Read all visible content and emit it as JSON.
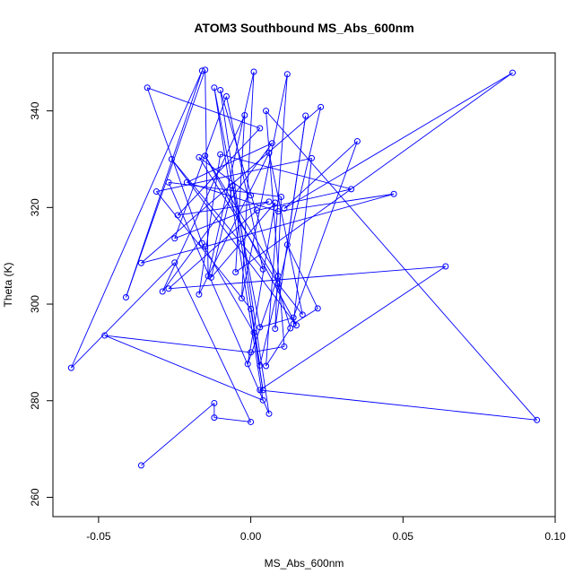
{
  "chart_data": {
    "type": "line",
    "title": "ATOM3 Southbound MS_Abs_600nm",
    "xlabel": "MS_Abs_600nm",
    "ylabel": "Theta (K)",
    "xlim": [
      -0.065,
      0.1
    ],
    "ylim": [
      256,
      352
    ],
    "xticks": [
      -0.05,
      0.0,
      0.05,
      0.1
    ],
    "xtick_labels": [
      "-0.05",
      "0.00",
      "0.05",
      "0.10"
    ],
    "yticks": [
      260,
      280,
      300,
      320,
      340
    ],
    "ytick_labels": [
      "260",
      "280",
      "300",
      "320",
      "340"
    ],
    "grid": false,
    "legend": "none",
    "markers": "open-circle",
    "series_color": "#0000ff",
    "points": [
      {
        "x": -0.036,
        "y": 266.6
      },
      {
        "x": -0.012,
        "y": 279.5
      },
      {
        "x": -0.012,
        "y": 276.5
      },
      {
        "x": 0.0,
        "y": 275.6
      },
      {
        "x": -0.025,
        "y": 308.6
      },
      {
        "x": -0.059,
        "y": 286.8
      },
      {
        "x": -0.016,
        "y": 348.3
      },
      {
        "x": -0.041,
        "y": 301.4
      },
      {
        "x": -0.015,
        "y": 348.5
      },
      {
        "x": -0.014,
        "y": 305.8
      },
      {
        "x": 0.001,
        "y": 348.1
      },
      {
        "x": -0.003,
        "y": 301.2
      },
      {
        "x": 0.012,
        "y": 347.6
      },
      {
        "x": 0.005,
        "y": 287.2
      },
      {
        "x": 0.013,
        "y": 295.0
      },
      {
        "x": -0.01,
        "y": 344.3
      },
      {
        "x": 0.006,
        "y": 277.3
      },
      {
        "x": -0.027,
        "y": 325.2
      },
      {
        "x": 0.01,
        "y": 322.2
      },
      {
        "x": 0.008,
        "y": 294.9
      },
      {
        "x": 0.018,
        "y": 339.0
      },
      {
        "x": 0.012,
        "y": 312.3
      },
      {
        "x": 0.022,
        "y": 299.1
      },
      {
        "x": 0.014,
        "y": 295.9
      },
      {
        "x": 0.02,
        "y": 330.2
      },
      {
        "x": -0.031,
        "y": 323.3
      },
      {
        "x": 0.0,
        "y": 299.0
      },
      {
        "x": 0.004,
        "y": 282.2
      },
      {
        "x": 0.001,
        "y": 294.1
      },
      {
        "x": -0.016,
        "y": 312.6
      },
      {
        "x": -0.034,
        "y": 344.8
      },
      {
        "x": 0.003,
        "y": 336.4
      },
      {
        "x": -0.024,
        "y": 318.4
      },
      {
        "x": 0.006,
        "y": 321.2
      },
      {
        "x": -0.025,
        "y": 313.6
      },
      {
        "x": -0.008,
        "y": 343.0
      },
      {
        "x": 0.004,
        "y": 307.2
      },
      {
        "x": -0.026,
        "y": 330.0
      },
      {
        "x": 0.015,
        "y": 295.6
      },
      {
        "x": -0.015,
        "y": 330.7
      },
      {
        "x": 0.009,
        "y": 305.8
      },
      {
        "x": -0.001,
        "y": 287.6
      },
      {
        "x": 0.008,
        "y": 321.0
      },
      {
        "x": -0.013,
        "y": 305.5
      },
      {
        "x": -0.006,
        "y": 324.5
      },
      {
        "x": 0.003,
        "y": 287.3
      },
      {
        "x": 0.023,
        "y": 340.8
      },
      {
        "x": -0.036,
        "y": 308.5
      },
      {
        "x": -0.015,
        "y": 311.9
      },
      {
        "x": 0.047,
        "y": 322.8
      },
      {
        "x": 0.009,
        "y": 319.2
      },
      {
        "x": -0.021,
        "y": 325.2
      },
      {
        "x": 0.007,
        "y": 333.3
      },
      {
        "x": -0.029,
        "y": 302.6
      },
      {
        "x": -0.002,
        "y": 339.1
      },
      {
        "x": -0.005,
        "y": 306.6
      },
      {
        "x": 0.086,
        "y": 347.9
      },
      {
        "x": 0.011,
        "y": 319.8
      },
      {
        "x": 0.035,
        "y": 333.7
      },
      {
        "x": 0.014,
        "y": 297.2
      },
      {
        "x": 0.003,
        "y": 295.2
      },
      {
        "x": -0.012,
        "y": 344.8
      },
      {
        "x": 0.004,
        "y": 280.1
      },
      {
        "x": -0.048,
        "y": 293.5
      },
      {
        "x": 0.0,
        "y": 290.0
      },
      {
        "x": 0.011,
        "y": 291.2
      },
      {
        "x": 0.005,
        "y": 340.0
      },
      {
        "x": 0.094,
        "y": 276.0
      },
      {
        "x": 0.003,
        "y": 282.2
      },
      {
        "x": 0.064,
        "y": 307.8
      },
      {
        "x": -0.027,
        "y": 303.2
      },
      {
        "x": 0.002,
        "y": 319.4
      },
      {
        "x": 0.033,
        "y": 323.8
      },
      {
        "x": -0.01,
        "y": 331.0
      },
      {
        "x": -0.017,
        "y": 302.0
      },
      {
        "x": 0.006,
        "y": 331.3
      },
      {
        "x": 0.017,
        "y": 297.8
      },
      {
        "x": 0.009,
        "y": 304.2
      },
      {
        "x": -0.017,
        "y": 330.4
      },
      {
        "x": 0.0,
        "y": 322.5
      }
    ]
  }
}
